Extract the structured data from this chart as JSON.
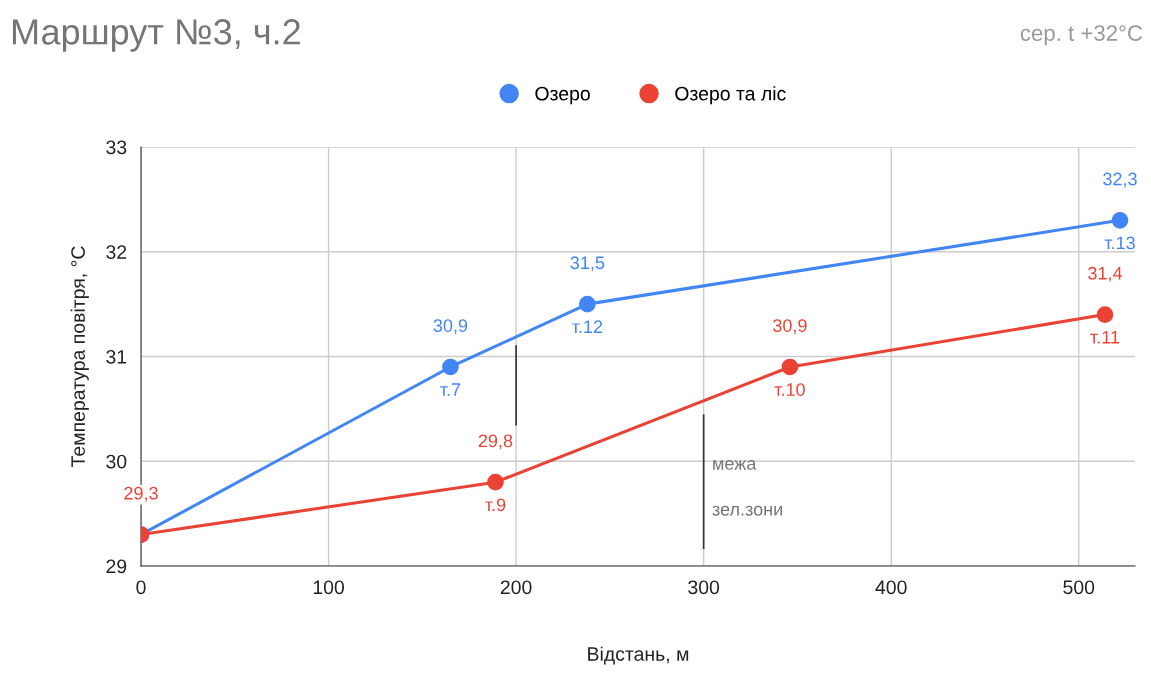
{
  "chart_data": {
    "type": "line",
    "title": "Маршрут №3, ч.2",
    "xlabel": "Відстань, м",
    "ylabel": "Температура повітря, °C",
    "xlim": [
      0,
      530
    ],
    "xticks": [
      0,
      100,
      200,
      300,
      400,
      500
    ],
    "ylim": [
      29,
      33
    ],
    "yticks": [
      29,
      30,
      31,
      32,
      33
    ],
    "grid": true,
    "legend": "top",
    "marker": "circle",
    "line_style": "solid",
    "series": [
      {
        "name": "Озеро",
        "color": "#4285f4",
        "x": [
          0,
          165,
          238,
          522
        ],
        "values": [
          29.3,
          30.9,
          31.5,
          32.3
        ],
        "value_labels": [
          null,
          "30,9",
          "31,5",
          "32,3"
        ]
      },
      {
        "name": "Озеро та ліс",
        "color": "#ea4335",
        "x": [
          0,
          189,
          346,
          514
        ],
        "values": [
          29.3,
          29.8,
          30.9,
          31.4
        ],
        "value_labels": [
          "29,3",
          "29,8",
          "30,9",
          "31,4"
        ]
      },
      {
        "color": "#333333",
        "x": [
          200,
          200
        ],
        "values": [
          30.35,
          31.1
        ],
        "marker": "none"
      },
      {
        "color": "#333333",
        "x": [
          300,
          300
        ],
        "values": [
          29.17,
          30.44
        ],
        "marker": "none"
      }
    ],
    "annotations": [
      "сер. t +32°C",
      {
        "text": "т.7",
        "x": 165,
        "y": 30.9
      },
      {
        "text": "т.12",
        "x": 238,
        "y": 31.5
      },
      {
        "text": "т.13",
        "x": 522,
        "y": 32.3
      },
      {
        "text": "т.9",
        "x": 189,
        "y": 29.8
      },
      {
        "text": "т.10",
        "x": 346,
        "y": 30.9
      },
      {
        "text": "т.11",
        "x": 514,
        "y": 31.4
      },
      "межа",
      "зел.зони"
    ]
  }
}
